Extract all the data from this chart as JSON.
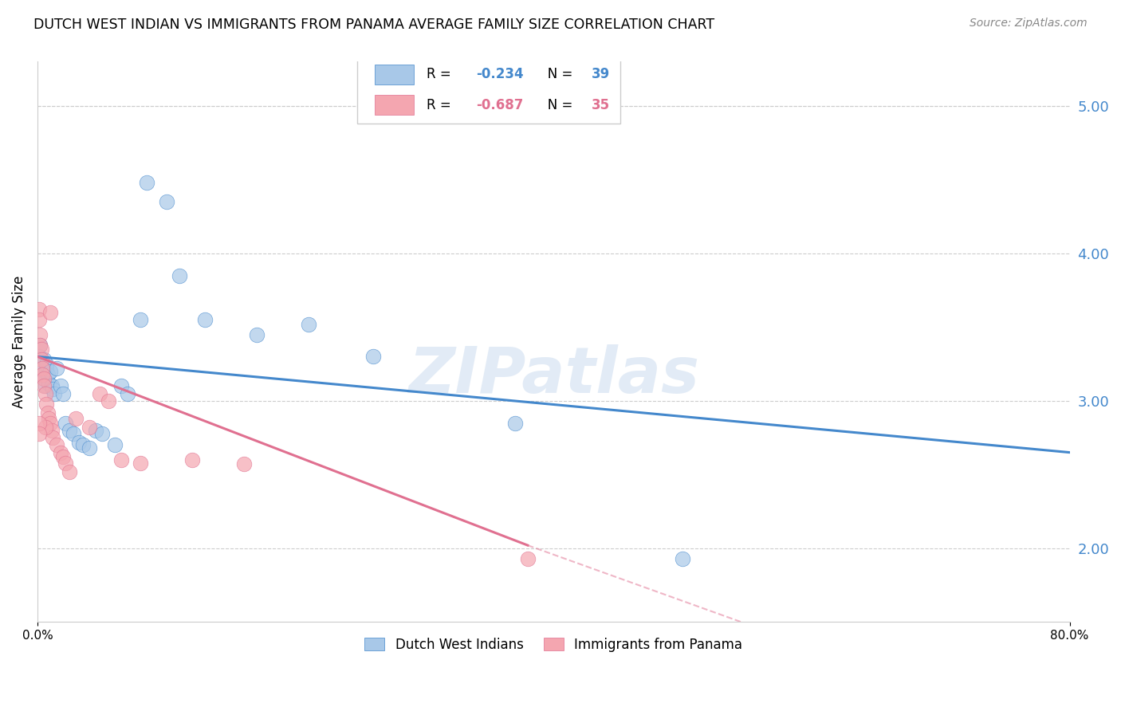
{
  "title": "DUTCH WEST INDIAN VS IMMIGRANTS FROM PANAMA AVERAGE FAMILY SIZE CORRELATION CHART",
  "source": "Source: ZipAtlas.com",
  "ylabel": "Average Family Size",
  "right_yticks": [
    2.0,
    3.0,
    4.0,
    5.0
  ],
  "xlim": [
    0.0,
    0.8
  ],
  "ylim": [
    1.5,
    5.3
  ],
  "watermark": "ZIPatlas",
  "legend_blue_r": "-0.234",
  "legend_blue_n": "39",
  "legend_pink_r": "-0.687",
  "legend_pink_n": "35",
  "blue_color": "#a8c8e8",
  "pink_color": "#f4a6b0",
  "blue_line_color": "#4488cc",
  "pink_line_color": "#e07090",
  "blue_line": [
    [
      0.0,
      3.3
    ],
    [
      0.8,
      2.65
    ]
  ],
  "pink_line_solid": [
    [
      0.0,
      3.3
    ],
    [
      0.38,
      2.02
    ]
  ],
  "pink_line_dash": [
    [
      0.38,
      2.02
    ],
    [
      0.8,
      0.7
    ]
  ],
  "blue_scatter": [
    [
      0.001,
      3.3
    ],
    [
      0.002,
      3.38
    ],
    [
      0.003,
      3.22
    ],
    [
      0.004,
      3.18
    ],
    [
      0.005,
      3.28
    ],
    [
      0.005,
      3.15
    ],
    [
      0.006,
      3.1
    ],
    [
      0.007,
      3.22
    ],
    [
      0.007,
      3.25
    ],
    [
      0.008,
      3.18
    ],
    [
      0.009,
      3.12
    ],
    [
      0.01,
      3.2
    ],
    [
      0.011,
      3.1
    ],
    [
      0.012,
      3.08
    ],
    [
      0.013,
      3.05
    ],
    [
      0.015,
      3.22
    ],
    [
      0.018,
      3.1
    ],
    [
      0.02,
      3.05
    ],
    [
      0.022,
      2.85
    ],
    [
      0.025,
      2.8
    ],
    [
      0.028,
      2.78
    ],
    [
      0.032,
      2.72
    ],
    [
      0.035,
      2.7
    ],
    [
      0.04,
      2.68
    ],
    [
      0.045,
      2.8
    ],
    [
      0.05,
      2.78
    ],
    [
      0.06,
      2.7
    ],
    [
      0.065,
      3.1
    ],
    [
      0.07,
      3.05
    ],
    [
      0.08,
      3.55
    ],
    [
      0.085,
      4.48
    ],
    [
      0.1,
      4.35
    ],
    [
      0.11,
      3.85
    ],
    [
      0.13,
      3.55
    ],
    [
      0.17,
      3.45
    ],
    [
      0.21,
      3.52
    ],
    [
      0.37,
      2.85
    ],
    [
      0.5,
      1.93
    ],
    [
      0.26,
      3.3
    ]
  ],
  "pink_scatter": [
    [
      0.001,
      3.62
    ],
    [
      0.001,
      3.55
    ],
    [
      0.002,
      3.45
    ],
    [
      0.002,
      3.38
    ],
    [
      0.003,
      3.35
    ],
    [
      0.003,
      3.28
    ],
    [
      0.004,
      3.22
    ],
    [
      0.004,
      3.18
    ],
    [
      0.005,
      3.15
    ],
    [
      0.005,
      3.1
    ],
    [
      0.006,
      3.05
    ],
    [
      0.007,
      2.98
    ],
    [
      0.008,
      2.92
    ],
    [
      0.009,
      2.88
    ],
    [
      0.01,
      2.85
    ],
    [
      0.011,
      2.8
    ],
    [
      0.012,
      2.75
    ],
    [
      0.015,
      2.7
    ],
    [
      0.018,
      2.65
    ],
    [
      0.02,
      2.62
    ],
    [
      0.022,
      2.58
    ],
    [
      0.025,
      2.52
    ],
    [
      0.03,
      2.88
    ],
    [
      0.04,
      2.82
    ],
    [
      0.048,
      3.05
    ],
    [
      0.055,
      3.0
    ],
    [
      0.065,
      2.6
    ],
    [
      0.08,
      2.58
    ],
    [
      0.01,
      3.6
    ],
    [
      0.006,
      2.82
    ],
    [
      0.12,
      2.6
    ],
    [
      0.16,
      2.57
    ],
    [
      0.001,
      2.85
    ],
    [
      0.001,
      2.78
    ],
    [
      0.38,
      1.93
    ]
  ]
}
